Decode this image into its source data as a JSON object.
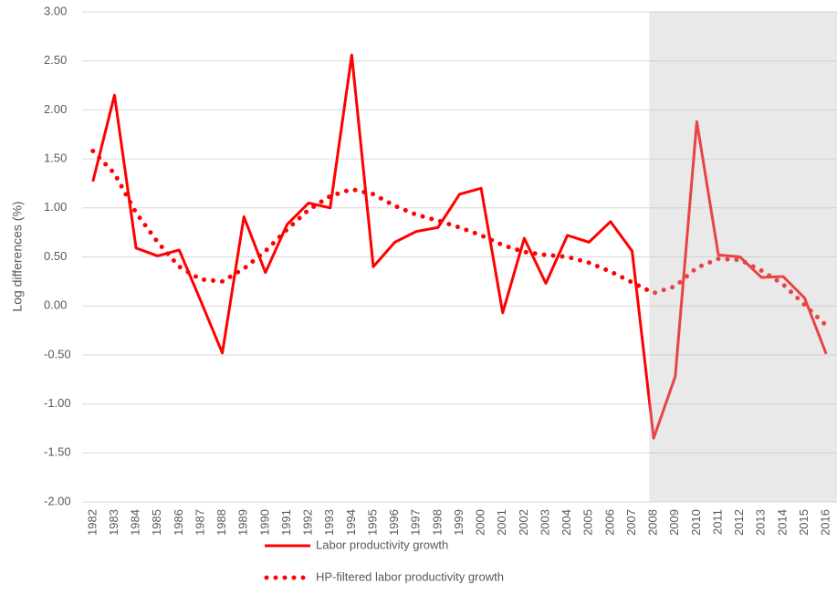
{
  "chart_data": {
    "type": "line",
    "y_label": "Log differences (%)",
    "categories": [
      "1982",
      "1983",
      "1984",
      "1985",
      "1986",
      "1987",
      "1988",
      "1989",
      "1990",
      "1991",
      "1992",
      "1993",
      "1994",
      "1995",
      "1996",
      "1997",
      "1998",
      "1999",
      "2000",
      "2001",
      "2002",
      "2003",
      "2004",
      "2005",
      "2006",
      "2007",
      "2008",
      "2009",
      "2010",
      "2011",
      "2012",
      "2013",
      "2014",
      "2015",
      "2016"
    ],
    "series": [
      {
        "name": "Labor productivity growth",
        "color": "#ff0000",
        "style": "solid",
        "values": [
          1.27,
          2.15,
          0.59,
          0.51,
          0.57,
          0.05,
          -0.48,
          0.91,
          0.34,
          0.83,
          1.05,
          1.0,
          2.56,
          0.4,
          0.65,
          0.76,
          0.8,
          1.14,
          1.2,
          -0.07,
          0.69,
          0.23,
          0.72,
          0.65,
          0.86,
          0.56,
          -1.35,
          -0.72,
          1.88,
          0.52,
          0.5,
          0.29,
          0.3,
          0.08,
          -0.49
        ]
      },
      {
        "name": "HP-filtered labor productivity growth",
        "color": "#ff0000",
        "style": "dotted",
        "values": [
          1.58,
          1.35,
          0.95,
          0.65,
          0.4,
          0.27,
          0.25,
          0.38,
          0.56,
          0.78,
          0.98,
          1.12,
          1.19,
          1.14,
          1.02,
          0.93,
          0.87,
          0.8,
          0.72,
          0.62,
          0.55,
          0.52,
          0.5,
          0.44,
          0.35,
          0.24,
          0.13,
          0.2,
          0.39,
          0.48,
          0.47,
          0.36,
          0.22,
          0.01,
          -0.2
        ]
      }
    ],
    "highlight_from": "2008",
    "ylim": [
      -2,
      3
    ],
    "yticks": [
      {
        "value": -2,
        "label": "-2.00"
      },
      {
        "value": -1.5,
        "label": "-1.50"
      },
      {
        "value": -1,
        "label": "-1.00"
      },
      {
        "value": -0.5,
        "label": "-0.50"
      },
      {
        "value": 0,
        "label": "0.00"
      },
      {
        "value": 0.5,
        "label": "0.50"
      },
      {
        "value": 1,
        "label": "1.00"
      },
      {
        "value": 1.5,
        "label": "1.50"
      },
      {
        "value": 2,
        "label": "2.00"
      },
      {
        "value": 2.5,
        "label": "2.50"
      },
      {
        "value": 3,
        "label": "3.00"
      }
    ],
    "grid": true
  }
}
